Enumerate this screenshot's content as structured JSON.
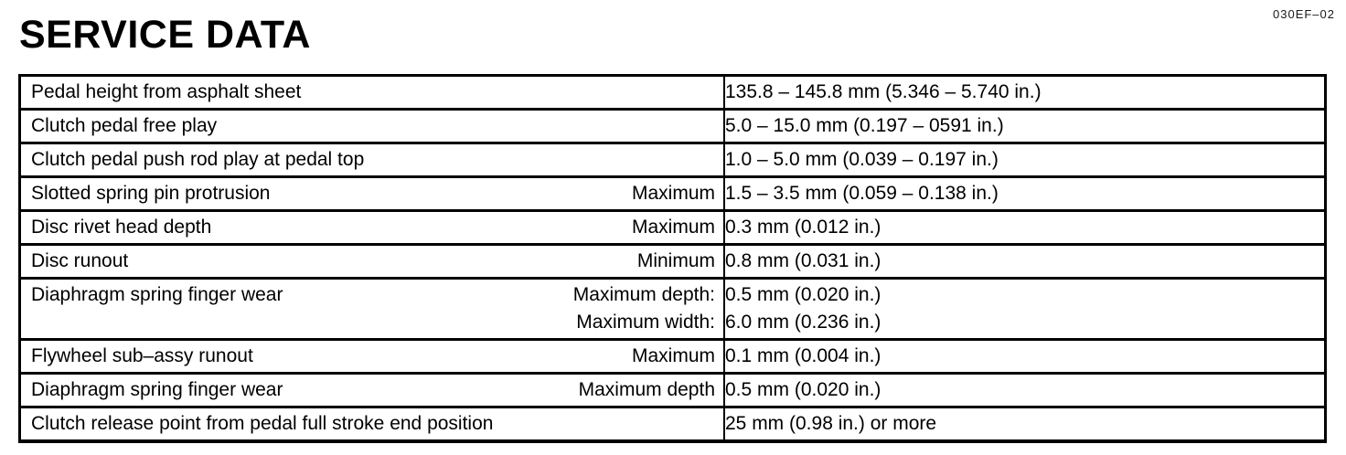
{
  "page": {
    "doc_code": "030EF–02",
    "title": "SERVICE DATA"
  },
  "colors": {
    "text": "#000000",
    "background": "#ffffff",
    "table_border": "#000000"
  },
  "table": {
    "rows": [
      {
        "item": "Pedal height from asphalt sheet",
        "qualifier_lines": [],
        "value_lines": [
          "135.8 – 145.8 mm (5.346 – 5.740 in.)"
        ]
      },
      {
        "item": "Clutch pedal free play",
        "qualifier_lines": [],
        "value_lines": [
          "5.0 – 15.0 mm (0.197 – 0591 in.)"
        ]
      },
      {
        "item": "Clutch pedal push rod play at pedal top",
        "qualifier_lines": [],
        "value_lines": [
          "1.0 – 5.0 mm (0.039 – 0.197 in.)"
        ]
      },
      {
        "item": "Slotted spring pin protrusion",
        "qualifier_lines": [
          "Maximum"
        ],
        "value_lines": [
          "1.5 – 3.5 mm (0.059 – 0.138 in.)"
        ]
      },
      {
        "item": "Disc rivet head depth",
        "qualifier_lines": [
          "Maximum"
        ],
        "value_lines": [
          "0.3 mm (0.012 in.)"
        ]
      },
      {
        "item": "Disc runout",
        "qualifier_lines": [
          "Minimum"
        ],
        "value_lines": [
          "0.8 mm (0.031 in.)"
        ]
      },
      {
        "item": "Diaphragm spring finger wear",
        "qualifier_lines": [
          "Maximum depth:",
          "Maximum width:"
        ],
        "value_lines": [
          "0.5 mm (0.020 in.)",
          "6.0 mm (0.236 in.)"
        ]
      },
      {
        "item": "Flywheel sub–assy runout",
        "qualifier_lines": [
          "Maximum"
        ],
        "value_lines": [
          "0.1 mm (0.004 in.)"
        ]
      },
      {
        "item": "Diaphragm spring finger wear",
        "qualifier_lines": [
          "Maximum depth"
        ],
        "value_lines": [
          "0.5 mm (0.020 in.)"
        ]
      },
      {
        "item": "Clutch release point from pedal full stroke end position",
        "qualifier_lines": [],
        "value_lines": [
          "25 mm (0.98 in.) or more"
        ]
      }
    ]
  }
}
